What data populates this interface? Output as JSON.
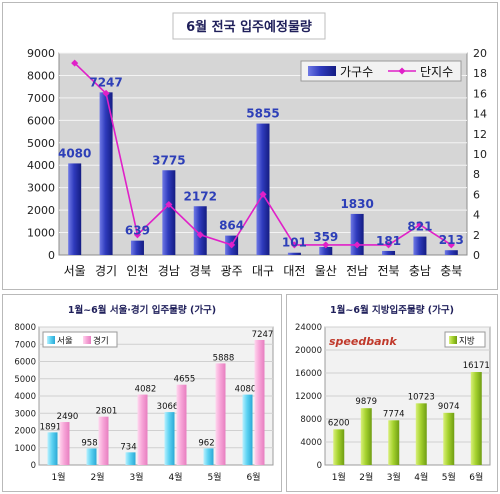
{
  "chart_data": [
    {
      "type": "bar+line",
      "title": "6월 전국 입주예정물량",
      "categories": [
        "서울",
        "경기",
        "인천",
        "경남",
        "경북",
        "광주",
        "대구",
        "대전",
        "울산",
        "전남",
        "전북",
        "충남",
        "충북"
      ],
      "y_left": {
        "min": 0,
        "max": 9000,
        "step": 1000,
        "ticks": [
          "0",
          "1000",
          "2000",
          "3000",
          "4000",
          "5000",
          "6000",
          "7000",
          "8000",
          "9000"
        ]
      },
      "y_right": {
        "min": 0,
        "max": 20,
        "step": 2,
        "ticks": [
          "0",
          "2",
          "4",
          "6",
          "8",
          "10",
          "12",
          "14",
          "16",
          "18",
          "20"
        ]
      },
      "series": [
        {
          "name": "가구수",
          "type": "bar",
          "axis": "left",
          "color": "#3a45c4",
          "values": [
            4080,
            7247,
            639,
            3775,
            2172,
            864,
            5855,
            101,
            359,
            1830,
            181,
            821,
            213
          ],
          "labels": [
            "4080",
            "7247",
            "639",
            "3775",
            "2172",
            "864",
            "5855",
            "101",
            "359",
            "1830",
            "181",
            "821",
            "213"
          ]
        },
        {
          "name": "단지수",
          "type": "line",
          "axis": "right",
          "color": "#e020c8",
          "values": [
            19,
            16,
            2,
            5,
            2,
            1,
            6,
            1,
            1,
            1,
            1,
            3,
            1
          ]
        }
      ],
      "legend": "top-right",
      "grid": true
    },
    {
      "type": "bar",
      "title": "1월~6월 서울·경기 입주물량 (가구)",
      "categories": [
        "1월",
        "2월",
        "3월",
        "4월",
        "5월",
        "6월"
      ],
      "y": {
        "min": 0,
        "max": 8000,
        "step": 1000,
        "ticks": [
          "0",
          "1000",
          "2000",
          "3000",
          "4000",
          "5000",
          "6000",
          "7000",
          "8000"
        ]
      },
      "series": [
        {
          "name": "서울",
          "color": "#5ed3f2",
          "values": [
            1891,
            958,
            734,
            3066,
            962,
            4080
          ],
          "labels": [
            "1891",
            "958",
            "734",
            "3066",
            "962",
            "4080"
          ]
        },
        {
          "name": "경기",
          "color": "#f7a6d8",
          "values": [
            2490,
            2801,
            4082,
            4655,
            5888,
            7247
          ],
          "labels": [
            "2490",
            "2801",
            "4082",
            "4655",
            "5888",
            "7247"
          ]
        }
      ],
      "legend": "top-left",
      "grid": true
    },
    {
      "type": "bar",
      "title": "1월~6월 지방입주물량 (가구)",
      "watermark": "speedbank",
      "categories": [
        "1월",
        "2월",
        "3월",
        "4월",
        "5월",
        "6월"
      ],
      "y": {
        "min": 0,
        "max": 24000,
        "step": 4000,
        "ticks": [
          "0",
          "4000",
          "8000",
          "12000",
          "16000",
          "20000",
          "24000"
        ]
      },
      "series": [
        {
          "name": "지방",
          "color": "#a5d22e",
          "values": [
            6200,
            9879,
            7774,
            10723,
            9074,
            16171
          ],
          "labels": [
            "6200",
            "9879",
            "7774",
            "10723",
            "9074",
            "16171"
          ]
        }
      ],
      "legend": "top-right",
      "grid": true
    }
  ]
}
